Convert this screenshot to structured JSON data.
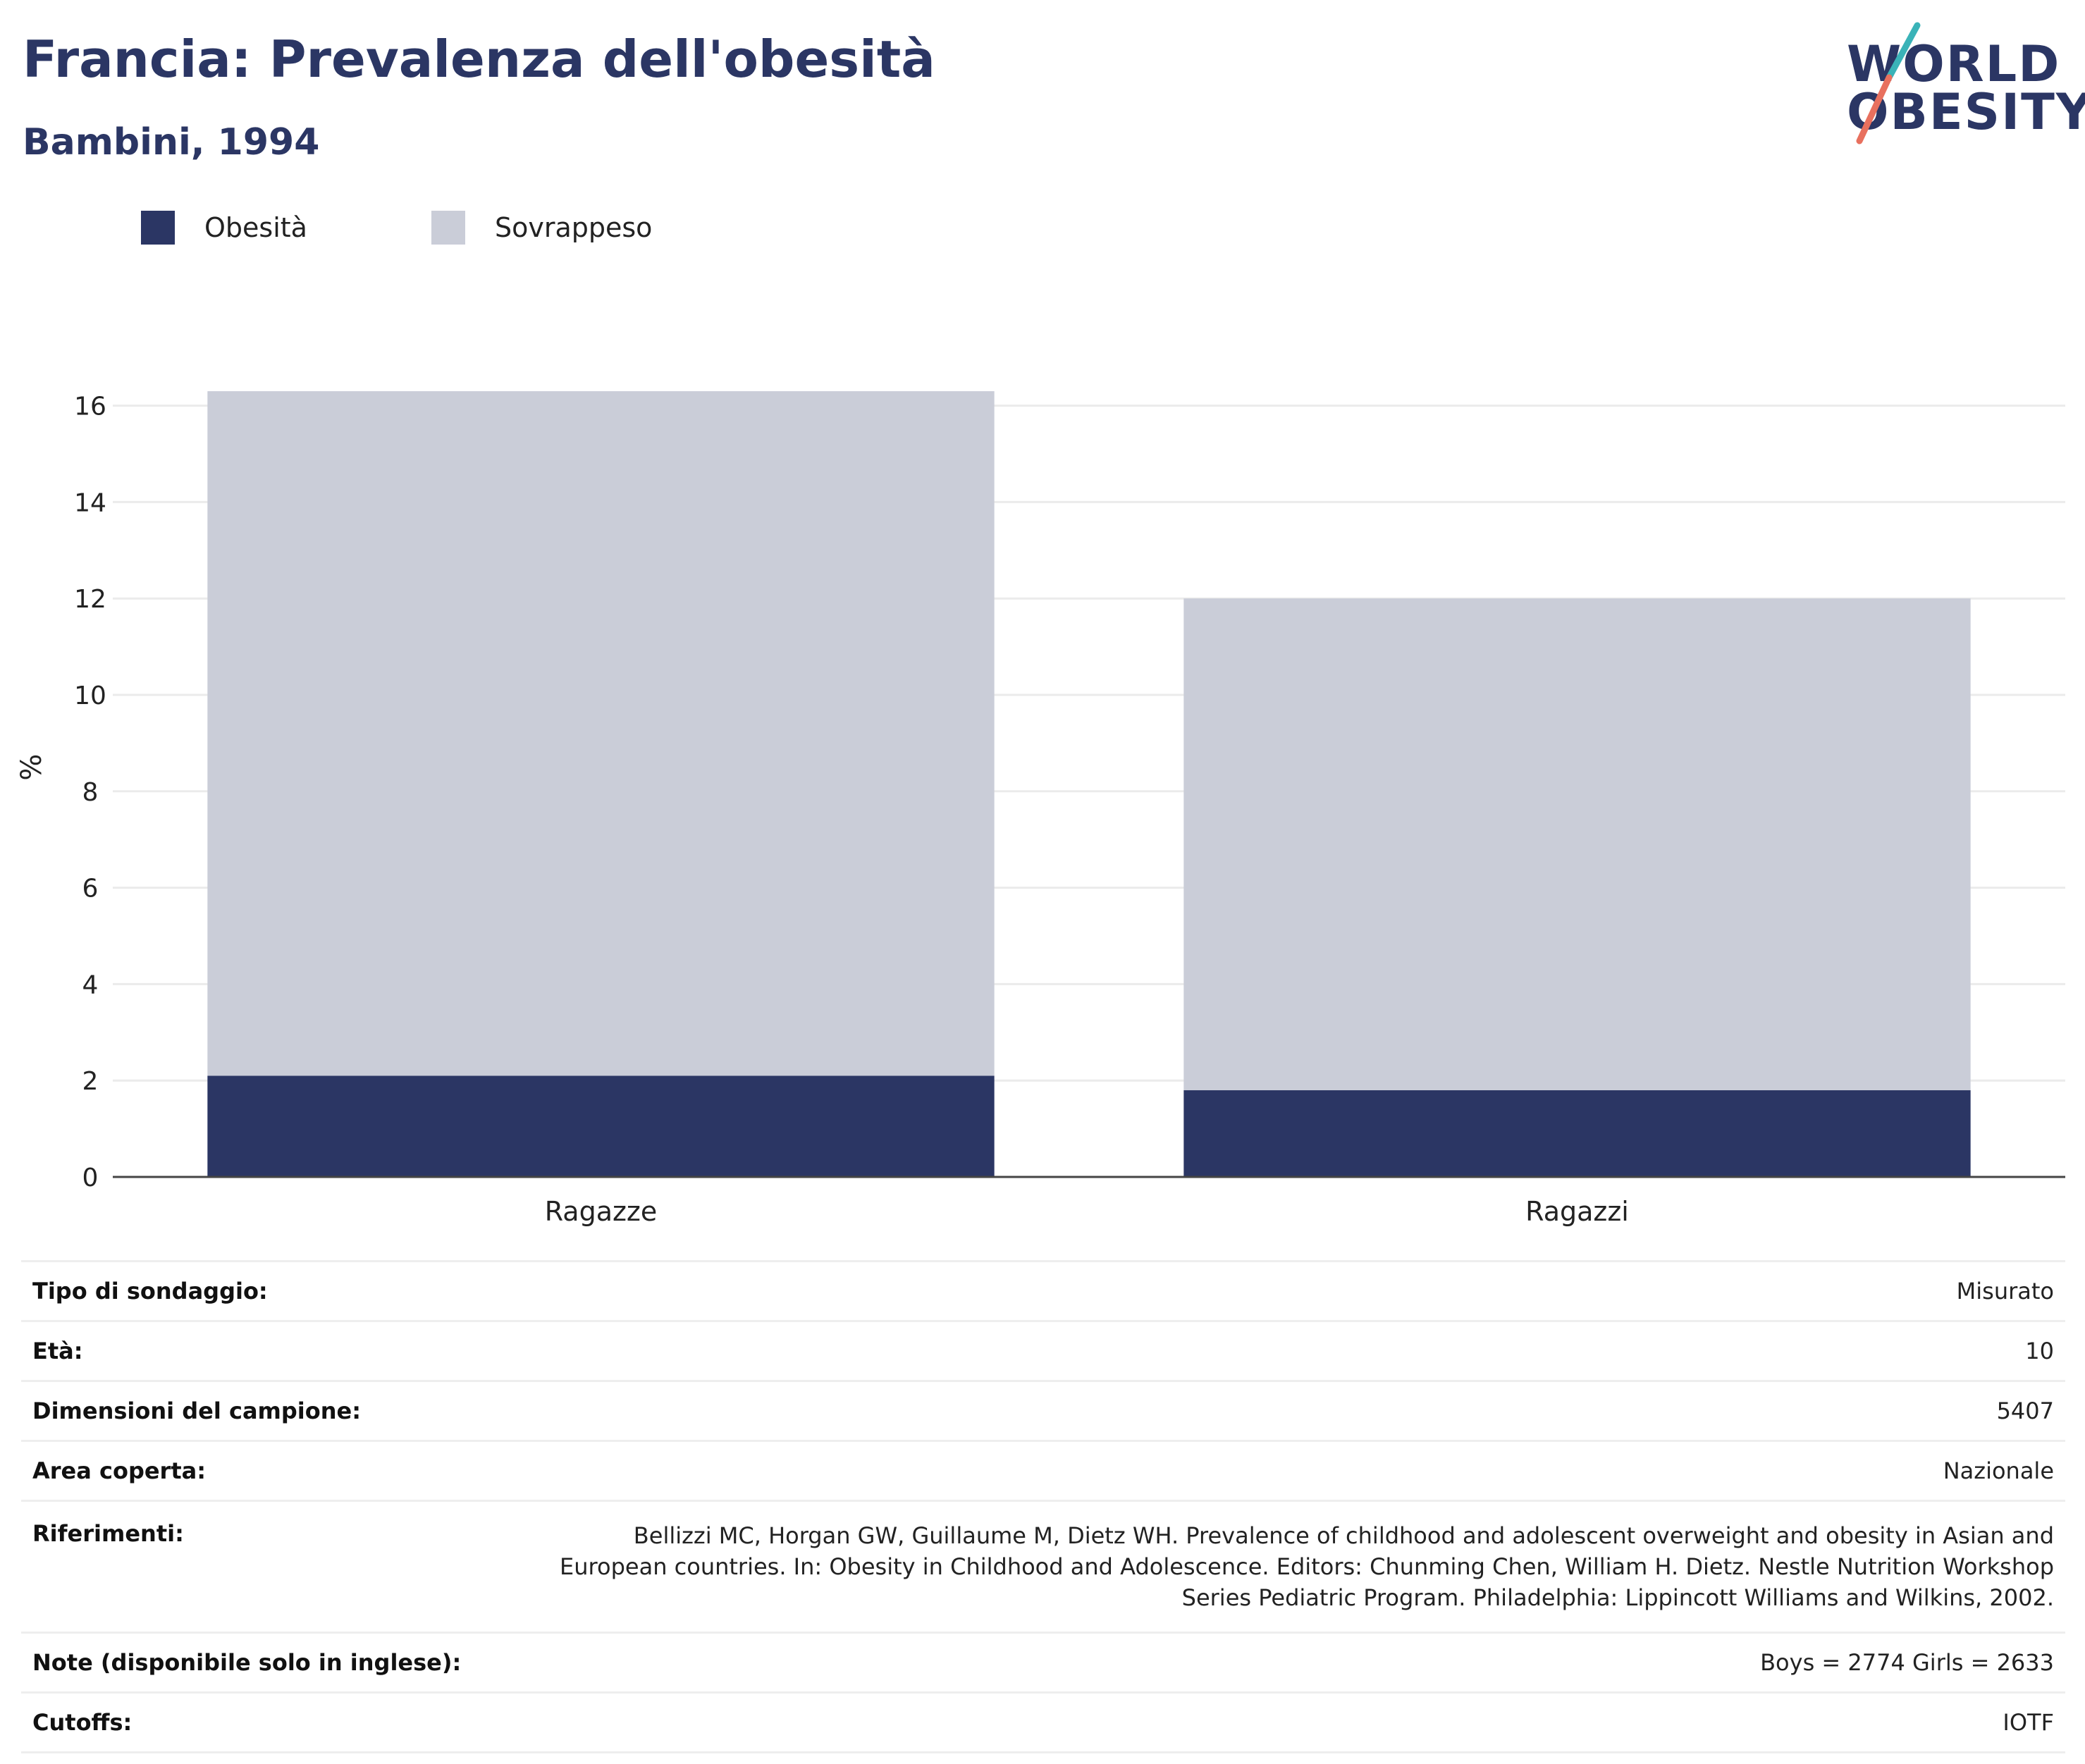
{
  "header": {
    "title": "Francia: Prevalenza dell'obesità",
    "subtitle": "Bambini, 1994"
  },
  "logo": {
    "line1": "WORLD",
    "line2": "OBESITY"
  },
  "colors": {
    "obesity": "#2b3664",
    "overweight": "#cacdd8",
    "accent_teal": "#3ab3b8",
    "accent_red": "#e8705e"
  },
  "chart_data": {
    "type": "bar",
    "stacked": true,
    "categories": [
      "Ragazze",
      "Ragazzi"
    ],
    "series": [
      {
        "name": "Obesità",
        "values": [
          2.1,
          1.8
        ],
        "color": "#2b3664"
      },
      {
        "name": "Sovrappeso",
        "values": [
          14.2,
          10.2
        ],
        "color": "#cacdd8"
      }
    ],
    "ylabel": "%",
    "ylim": [
      0,
      17
    ],
    "yticks": [
      0,
      2,
      4,
      6,
      8,
      10,
      12,
      14,
      16
    ],
    "grid": true,
    "legend": "top-left"
  },
  "info": {
    "rows": [
      {
        "label": "Tipo di sondaggio:",
        "value": "Misurato"
      },
      {
        "label": "Età:",
        "value": "10"
      },
      {
        "label": "Dimensioni del campione:",
        "value": "5407"
      },
      {
        "label": "Area coperta:",
        "value": "Nazionale"
      },
      {
        "label": "Riferimenti:",
        "value": "Bellizzi MC, Horgan GW, Guillaume M, Dietz WH. Prevalence of childhood and adolescent overweight and obesity in Asian and European countries. In: Obesity in Childhood and Adolescence. Editors: Chunming Chen, William H. Dietz. Nestle Nutrition Workshop Series Pediatric Program. Philadelphia: Lippincott Williams and Wilkins, 2002."
      },
      {
        "label": "Note (disponibile solo in inglese):",
        "value": "Boys = 2774 Girls = 2633"
      },
      {
        "label": "Cutoffs:",
        "value": "IOTF"
      }
    ]
  }
}
